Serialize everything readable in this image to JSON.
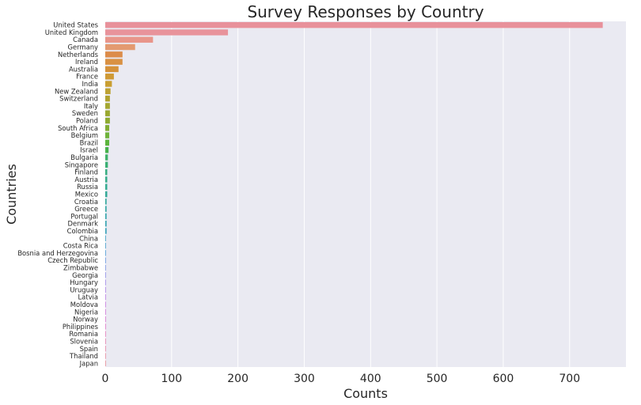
{
  "chart_data": {
    "type": "bar",
    "orientation": "horizontal",
    "title": "Survey Responses by Country",
    "xlabel": "Counts",
    "ylabel": "Countries",
    "xlim": [
      0,
      785
    ],
    "xticks": [
      0,
      100,
      200,
      300,
      400,
      500,
      600,
      700
    ],
    "grid": true,
    "background": "#eaeaf2",
    "categories": [
      "United States",
      "United Kingdom",
      "Canada",
      "Germany",
      "Netherlands",
      "Ireland",
      "Australia",
      "France",
      "India",
      "New Zealand",
      "Switzerland",
      "Italy",
      "Sweden",
      "Poland",
      "South Africa",
      "Belgium",
      "Brazil",
      "Israel",
      "Bulgaria",
      "Singapore",
      "Finland",
      "Austria",
      "Russia",
      "Mexico",
      "Croatia",
      "Greece",
      "Portugal",
      "Denmark",
      "Colombia",
      "China",
      "Costa Rica",
      "Bosnia and Herzegovina",
      "Czech Republic",
      "Zimbabwe",
      "Georgia",
      "Hungary",
      "Uruguay",
      "Latvia",
      "Moldova",
      "Nigeria",
      "Norway",
      "Philippines",
      "Romania",
      "Slovenia",
      "Spain",
      "Thailand",
      "Japan"
    ],
    "values": [
      750,
      185,
      72,
      45,
      26,
      26,
      20,
      13,
      10,
      8,
      7,
      7,
      7,
      7,
      6,
      6,
      6,
      5,
      4,
      4,
      3,
      3,
      3,
      3,
      2,
      2,
      2,
      2,
      2,
      1,
      1,
      1,
      1,
      1,
      1,
      1,
      1,
      1,
      1,
      1,
      1,
      1,
      1,
      1,
      1,
      1,
      1
    ],
    "colors": [
      "#e8919b",
      "#e8939b",
      "#e8958a",
      "#e39a70",
      "#dc8c4a",
      "#d99143",
      "#d5923a",
      "#cf9a35",
      "#c99e31",
      "#bda234",
      "#b0a22f",
      "#a4a730",
      "#9aa82f",
      "#8eab30",
      "#82ad33",
      "#6fb33b",
      "#5cb43c",
      "#47b24c",
      "#40b16a",
      "#3ab074",
      "#38ae81",
      "#36ad8a",
      "#35ab91",
      "#35aa98",
      "#36a99e",
      "#37a8a5",
      "#38a6ad",
      "#3aa5b3",
      "#3da3bb",
      "#41a2c4",
      "#4aa0cc",
      "#55a0d8",
      "#6d9de0",
      "#849be4",
      "#9595e8",
      "#a590ea",
      "#b28ae9",
      "#bf85e6",
      "#ca82e0",
      "#d27fdb",
      "#da7ed3",
      "#e17ecb",
      "#e583bf",
      "#e688b3",
      "#e88cab",
      "#e891a3",
      "#e8939b"
    ]
  }
}
